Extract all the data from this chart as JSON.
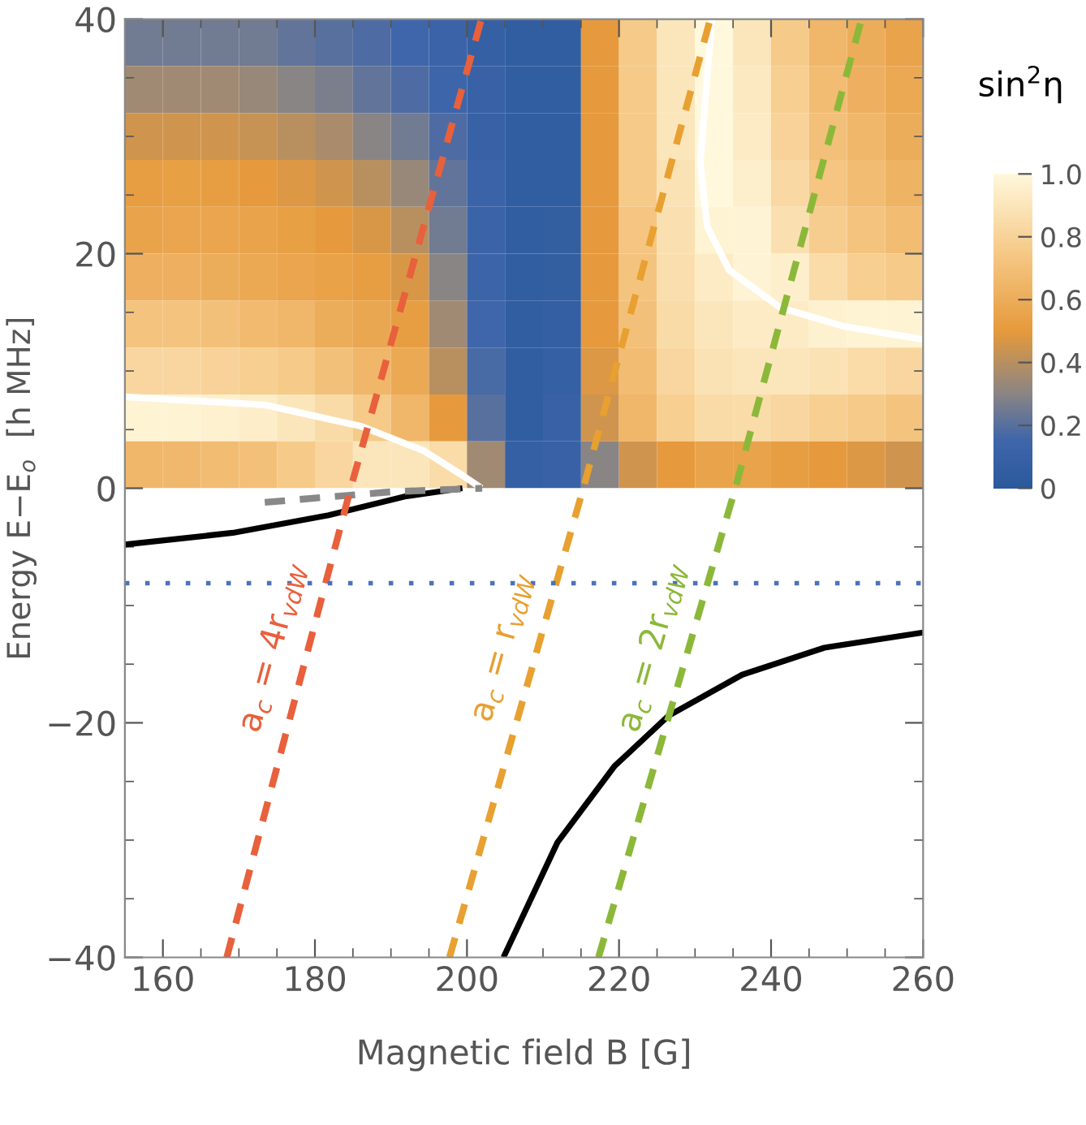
{
  "chart_data": [
    {
      "type": "heatmap",
      "clabel": "sin$^{2}$η",
      "tick_labels": false,
      "categories": [
        null,
        null,
        null,
        null,
        null,
        null,
        null,
        null,
        null,
        null,
        null,
        null,
        null,
        null,
        null,
        null,
        null,
        null,
        null,
        null,
        null
      ],
      "y_categories": [
        null,
        null,
        null,
        null,
        null,
        null,
        null,
        null,
        null,
        null
      ],
      "clim": [
        0,
        1
      ],
      "cticks": [
        0,
        0.2,
        0.4,
        0.6,
        0.8,
        {
          "value": 1,
          "label": "1.0"
        }
      ],
      "cells": [
        [
          0.25,
          0.25,
          0.25,
          0.25,
          0.22,
          0.2,
          0.18,
          0.15,
          0.12,
          0.08,
          0.05,
          0.05,
          0.5,
          0.75,
          0.9,
          1.0,
          0.9,
          0.75,
          0.65,
          0.6,
          0.55
        ],
        [
          0.35,
          0.35,
          0.35,
          0.33,
          0.3,
          0.27,
          0.22,
          0.18,
          0.14,
          0.1,
          0.05,
          0.05,
          0.5,
          0.75,
          0.9,
          1.0,
          0.92,
          0.78,
          0.68,
          0.62,
          0.58
        ],
        [
          0.45,
          0.45,
          0.45,
          0.43,
          0.4,
          0.37,
          0.3,
          0.25,
          0.18,
          0.1,
          0.05,
          0.05,
          0.5,
          0.75,
          0.9,
          1.0,
          0.93,
          0.8,
          0.7,
          0.65,
          0.6
        ],
        [
          0.52,
          0.53,
          0.52,
          0.5,
          0.48,
          0.45,
          0.4,
          0.33,
          0.22,
          0.12,
          0.05,
          0.05,
          0.5,
          0.75,
          0.88,
          1.0,
          0.95,
          0.83,
          0.73,
          0.68,
          0.63
        ],
        [
          0.55,
          0.56,
          0.56,
          0.55,
          0.53,
          0.5,
          0.47,
          0.4,
          0.25,
          0.12,
          0.05,
          0.06,
          0.5,
          0.73,
          0.87,
          0.97,
          0.98,
          0.87,
          0.77,
          0.72,
          0.68
        ],
        [
          0.62,
          0.62,
          0.6,
          0.58,
          0.56,
          0.54,
          0.52,
          0.47,
          0.3,
          0.13,
          0.05,
          0.06,
          0.5,
          0.72,
          0.86,
          0.93,
          0.98,
          0.95,
          0.85,
          0.78,
          0.75
        ],
        [
          0.72,
          0.72,
          0.7,
          0.67,
          0.65,
          0.6,
          0.57,
          0.52,
          0.35,
          0.15,
          0.05,
          0.07,
          0.5,
          0.7,
          0.84,
          0.9,
          0.93,
          0.93,
          0.96,
          0.97,
          0.97
        ],
        [
          0.82,
          0.82,
          0.8,
          0.78,
          0.75,
          0.7,
          0.65,
          0.58,
          0.4,
          0.17,
          0.05,
          0.08,
          0.48,
          0.68,
          0.82,
          0.88,
          0.9,
          0.9,
          0.88,
          0.85,
          0.82
        ],
        [
          0.97,
          0.97,
          0.96,
          0.94,
          0.9,
          0.84,
          0.75,
          0.65,
          0.5,
          0.2,
          0.05,
          0.1,
          0.45,
          0.65,
          0.78,
          0.84,
          0.85,
          0.82,
          0.78,
          0.75,
          0.72
        ],
        [
          0.65,
          0.66,
          0.68,
          0.7,
          0.75,
          0.82,
          0.9,
          0.9,
          0.85,
          0.35,
          0.08,
          0.1,
          0.3,
          0.45,
          0.5,
          0.55,
          0.55,
          0.52,
          0.5,
          0.48,
          0.45
        ]
      ]
    },
    {
      "type": "line",
      "xlabel": "Magnetic field B [G]",
      "ylabel": "Energy E−E$_{o}$  [h MHz]",
      "xlim": [
        155,
        260
      ],
      "ylim": [
        -40,
        40
      ],
      "xticks": [
        160,
        180,
        200,
        220,
        240,
        260
      ],
      "yticks": [
        -40,
        -20,
        0,
        20,
        40
      ],
      "grid": false,
      "legend": false,
      "ref_lines": [
        {
          "axis": "y",
          "value": -8.1,
          "color": "#4a72b8",
          "line_style": "dotted"
        }
      ],
      "series": [
        {
          "color": "#ffffff",
          "line_style": "solid",
          "x": [
            155,
            173.4,
            186,
            194.3,
            199.4,
            201.9
          ],
          "values": [
            7.8,
            7.1,
            5.3,
            3.2,
            1.1,
            0
          ]
        },
        {
          "color": "#ffffff",
          "line_style": "solid",
          "x": [
            232.2,
            230.7,
            231.6,
            234.5,
            241.2,
            249.6,
            260
          ],
          "values": [
            40,
            27.8,
            22.3,
            18.6,
            15.4,
            13.8,
            12.7
          ]
        },
        {
          "color": "#000000",
          "line_style": "solid",
          "x": [
            155,
            169.2,
            181.8,
            191.8,
            199.4
          ],
          "values": [
            -4.8,
            -3.8,
            -2.3,
            -0.7,
            0
          ]
        },
        {
          "color": "#888888",
          "line_style": "dashed",
          "x": [
            173.4,
            190.1,
            202
          ],
          "values": [
            -1.2,
            -0.3,
            0
          ]
        },
        {
          "color": "#000000",
          "line_style": "solid",
          "x": [
            204.8,
            211.9,
            219.4,
            226.5,
            236.2,
            247,
            260
          ],
          "values": [
            -40,
            -30.2,
            -23.7,
            -19.4,
            -15.9,
            -13.6,
            -12.3
          ]
        },
        {
          "name": "a$_{c}$ = 4r$_{vdW}$",
          "color": "#e8603c",
          "line_style": "dashed",
          "x": [
            168.4,
            184.7,
            201.9
          ],
          "values": [
            -40,
            0,
            40
          ]
        },
        {
          "name": "a$_{c}$ = r$_{vdW}$",
          "color": "#e8a030",
          "line_style": "dashed",
          "x": [
            197.7,
            215.3,
            232.0
          ],
          "values": [
            -40,
            0,
            40
          ]
        },
        {
          "name": "a$_{c}$ = 2r$_{vdW}$",
          "color": "#8cb83a",
          "line_style": "dashed",
          "x": [
            217.3,
            235.3,
            251.9
          ],
          "values": [
            -40,
            0,
            40
          ]
        }
      ]
    }
  ]
}
